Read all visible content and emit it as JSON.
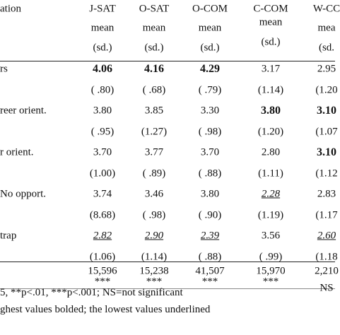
{
  "table": {
    "header": [
      [
        "ation",
        "J-SAT",
        "O-SAT",
        "O-COM",
        "C-COM",
        "W-CC"
      ],
      [
        "",
        "mean",
        "mean",
        "mean",
        "mean",
        "mea"
      ],
      [
        "",
        "(sd.)",
        "(sd.)",
        "(sd.)",
        "(sd.)",
        "(sd."
      ]
    ],
    "rows": [
      [
        "rs",
        "4.06",
        "4.16",
        "4.29",
        "3.17",
        "2.95"
      ],
      [
        "",
        "( .80)",
        "( .68)",
        "( .79)",
        "(1.14)",
        "(1.20"
      ],
      [
        "reer orient.",
        "3.80",
        "3.85",
        "3.30",
        "3.80",
        "3.10"
      ],
      [
        "",
        "( .95)",
        "(1.27)",
        "( .98)",
        "(1.20)",
        "(1.07"
      ],
      [
        "r orient.",
        "3.70",
        "3.77",
        "3.70",
        "2.80",
        "3.10"
      ],
      [
        "",
        "(1.00)",
        "( .89)",
        "( .88)",
        "(1.11)",
        "(1.12"
      ],
      [
        "No opport.",
        "3.74",
        "3.46",
        "3.80",
        "2.28",
        "2.83"
      ],
      [
        "",
        "(8.68)",
        "( .98)",
        "( .90)",
        "(1.19)",
        "(1.17"
      ],
      [
        "trap",
        "2.82",
        "2.90",
        "2.39",
        "3.56",
        "2.60"
      ],
      [
        "",
        "(1.06)",
        "(1.14)",
        "( .88)",
        "( .99)",
        "(1.18"
      ]
    ],
    "totals": [
      "",
      "15,596",
      "15,238",
      "41,507",
      "15,970",
      "2,210"
    ],
    "significance": [
      "",
      "***",
      "***",
      "***",
      "***",
      "NS"
    ],
    "footnotes": [
      "5, **p<.01, ***p<.001; NS=not significant",
      "ghest values bolded; the lowest values underlined"
    ]
  }
}
